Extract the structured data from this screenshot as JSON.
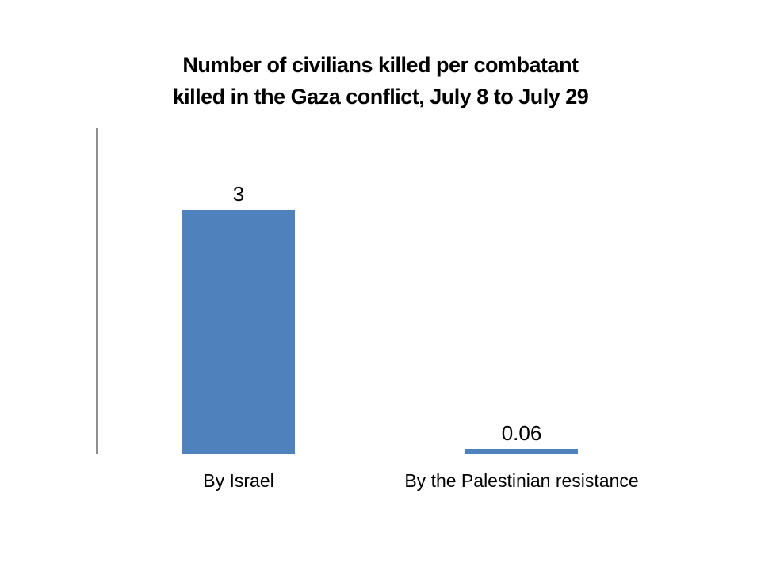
{
  "chart_data": {
    "type": "bar",
    "title": "Number of civilians killed per combatant killed in the Gaza conflict, July 8 to July 29",
    "title_lines": [
      "Number of civilians killed per combatant",
      "killed in the Gaza conflict, July 8 to July 29"
    ],
    "categories": [
      "By Israel",
      "By the Palestinian resistance"
    ],
    "values": [
      3,
      0.06
    ],
    "value_labels": [
      "3",
      "0.06"
    ],
    "xlabel": "",
    "ylabel": "",
    "ylim": [
      0,
      4
    ],
    "grid": false,
    "legend": false,
    "bar_color": "#4F81BD",
    "axis_color": "#8E8E8E",
    "text_color": "#000000",
    "background_color": "#FFFFFF"
  }
}
